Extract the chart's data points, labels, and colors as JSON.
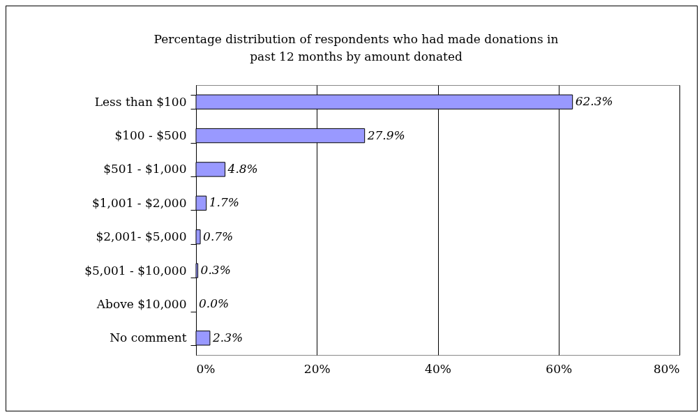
{
  "chart_data": {
    "type": "bar",
    "orientation": "horizontal",
    "title": "Percentage distribution of respondents who had made donations in\npast 12 months by amount donated",
    "categories": [
      "Less than $100",
      "$100 - $500",
      "$501 - $1,000",
      "$1,001 - $2,000",
      "$2,001- $5,000",
      "$5,001 - $10,000",
      "Above $10,000",
      "No comment"
    ],
    "values": [
      62.3,
      27.9,
      4.8,
      1.7,
      0.7,
      0.3,
      0.0,
      2.3
    ],
    "value_labels": [
      "62.3%",
      "27.9%",
      "4.8%",
      "1.7%",
      "0.7%",
      "0.3%",
      "0.0%",
      "2.3%"
    ],
    "color": "#9999ff",
    "xlim": [
      0,
      80
    ],
    "xticks": [
      {
        "value": 0,
        "label": "0%"
      },
      {
        "value": 20,
        "label": "20%"
      },
      {
        "value": 40,
        "label": "40%"
      },
      {
        "value": 60,
        "label": "60%"
      },
      {
        "value": 80,
        "label": "80%"
      }
    ],
    "grid": "x"
  }
}
